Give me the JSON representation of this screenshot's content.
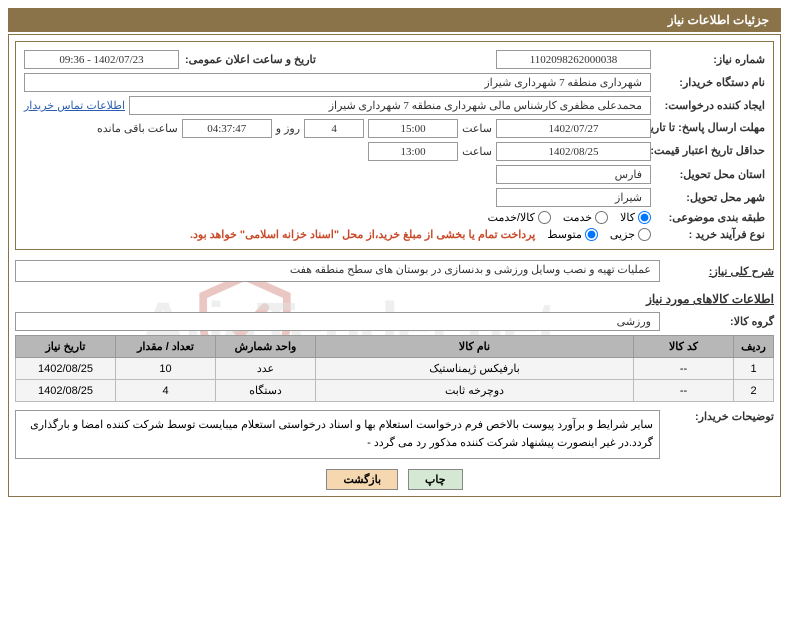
{
  "header": {
    "title": "جزئیات اطلاعات نیاز"
  },
  "watermark": "AriaTender.net",
  "fields": {
    "need_no_label": "شماره نیاز:",
    "need_no": "1102098262000038",
    "announce_label": "تاریخ و ساعت اعلان عمومی:",
    "announce_val": "1402/07/23 - 09:36",
    "buyer_org_label": "نام دستگاه خریدار:",
    "buyer_org": "شهرداری منطقه 7 شهرداری شیراز",
    "requester_label": "ایجاد کننده درخواست:",
    "requester": "محمدعلی مظفری کارشناس مالی شهرداری منطقه 7 شهرداری شیراز",
    "buyer_contact_link": "اطلاعات تماس خریدار",
    "reply_deadline_label": "مهلت ارسال پاسخ: تا تاریخ:",
    "reply_date": "1402/07/27",
    "time_label": "ساعت",
    "reply_time": "15:00",
    "days_val": "4",
    "days_and": "روز و",
    "countdown": "04:37:47",
    "remaining": "ساعت باقی مانده",
    "price_valid_label": "حداقل تاریخ اعتبار قیمت: تا تاریخ:",
    "price_date": "1402/08/25",
    "price_time": "13:00",
    "province_label": "استان محل تحویل:",
    "province": "فارس",
    "city_label": "شهر محل تحویل:",
    "city": "شیراز",
    "category_label": "طبقه بندی موضوعی:",
    "cat_goods": "کالا",
    "cat_service": "خدمت",
    "cat_goods_service": "کالا/خدمت",
    "process_label": "نوع فرآیند خرید :",
    "proc_partial": "جزیی",
    "proc_medium": "متوسط",
    "payment_note": "پرداخت تمام یا بخشی از مبلغ خرید،از محل \"اسناد خزانه اسلامی\" خواهد بود.",
    "overview_label": "شرح کلی نیاز:",
    "overview": "عملیات تهیه و نصب وسایل ورزشی و بدنسازی در بوستان های سطح منطقه هفت",
    "items_title": "اطلاعات کالاهای مورد نیاز",
    "group_label": "گروه کالا:",
    "group": "ورزشی",
    "buyer_desc_label": "توضیحات خریدار:",
    "buyer_desc": "سایر شرایط و برآورد پیوست  بالاخص فرم درخواست استعلام بها و اسناد درخواستی استعلام میبایست توسط شرکت کننده امضا و بارگذاری گردد.در غیر اینصورت پیشنهاد شرکت کننده مذکور رد می گردد -"
  },
  "table": {
    "headers": {
      "row": "ردیف",
      "code": "کد کالا",
      "name": "نام کالا",
      "unit": "واحد شمارش",
      "qty": "تعداد / مقدار",
      "date": "تاریخ نیاز"
    },
    "rows": [
      {
        "row": "1",
        "code": "--",
        "name": "بارفیکس ژیمناستیک",
        "unit": "عدد",
        "qty": "10",
        "date": "1402/08/25"
      },
      {
        "row": "2",
        "code": "--",
        "name": "دوچرخه ثابت",
        "unit": "دستگاه",
        "qty": "4",
        "date": "1402/08/25"
      }
    ]
  },
  "buttons": {
    "print": "چاپ",
    "back": "بازگشت"
  },
  "colors": {
    "header_bg": "#8a7349",
    "table_header_bg": "#b7b7b7",
    "link": "#2a5db0",
    "note": "#c94a2a"
  }
}
